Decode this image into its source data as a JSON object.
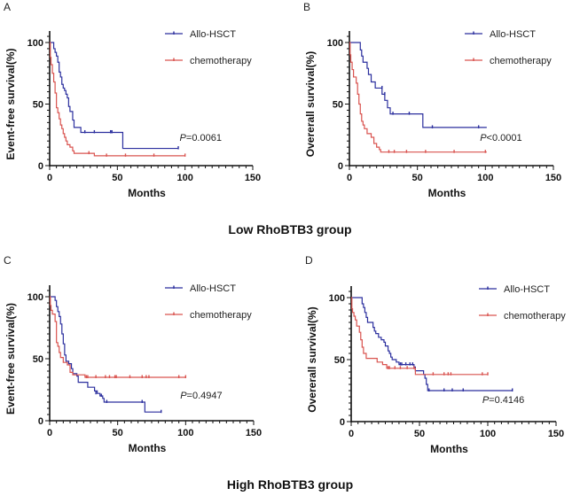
{
  "colors": {
    "allo": "#2b2f9e",
    "chemo": "#d9534f",
    "axis": "#111111"
  },
  "group_labels": {
    "low": "Low RhoBTB3 group",
    "high": "High RhoBTB3 group"
  },
  "chart_data": [
    {
      "id": "A",
      "type": "line",
      "panel_label": "A",
      "title": "",
      "xlabel": "Months",
      "ylabel": "Event-free survival(%)",
      "xlim": [
        0,
        150
      ],
      "ylim": [
        0,
        100
      ],
      "xticks": [
        "0",
        "50",
        "100",
        "150"
      ],
      "yticks": [
        "0",
        "50",
        "100"
      ],
      "legend": [
        "Allo-HSCT",
        "chemotherapy"
      ],
      "legend_position": "top-right",
      "annotation": {
        "italic": "P",
        "text": "=0.0061"
      },
      "series": [
        {
          "name": "Allo-HSCT",
          "color_key": "allo",
          "steps": [
            [
              0,
              100
            ],
            [
              2,
              100
            ],
            [
              3,
              95
            ],
            [
              4,
              92
            ],
            [
              5,
              89
            ],
            [
              6,
              84
            ],
            [
              7,
              76
            ],
            [
              8,
              72
            ],
            [
              9,
              66
            ],
            [
              10,
              63
            ],
            [
              11,
              61
            ],
            [
              12,
              58
            ],
            [
              13,
              55
            ],
            [
              14,
              48
            ],
            [
              15,
              44
            ],
            [
              17,
              37
            ],
            [
              18,
              31
            ],
            [
              22,
              31
            ],
            [
              23,
              27
            ],
            [
              54,
              27
            ],
            [
              54,
              14
            ],
            [
              95,
              14
            ]
          ],
          "censored": [
            [
              26,
              27
            ],
            [
              33,
              27
            ],
            [
              45,
              27
            ],
            [
              46,
              27
            ],
            [
              95,
              14
            ]
          ]
        },
        {
          "name": "chemotherapy",
          "color_key": "chemo",
          "steps": [
            [
              0,
              100
            ],
            [
              0.5,
              88
            ],
            [
              1,
              82
            ],
            [
              2,
              75
            ],
            [
              3,
              68
            ],
            [
              4,
              59
            ],
            [
              5,
              47
            ],
            [
              6,
              43
            ],
            [
              7,
              38
            ],
            [
              8,
              33
            ],
            [
              9,
              30
            ],
            [
              10,
              26
            ],
            [
              11,
              23
            ],
            [
              12,
              20
            ],
            [
              13,
              17
            ],
            [
              15,
              15
            ],
            [
              17,
              12
            ],
            [
              18,
              10
            ],
            [
              30,
              10
            ],
            [
              33,
              8
            ],
            [
              100,
              8
            ]
          ],
          "censored": [
            [
              29,
              10
            ],
            [
              42,
              8
            ],
            [
              56,
              8
            ],
            [
              77,
              8
            ],
            [
              100,
              8
            ]
          ]
        }
      ]
    },
    {
      "id": "B",
      "type": "line",
      "panel_label": "B",
      "title": "",
      "xlabel": "Months",
      "ylabel": "Overerall survival(%)",
      "xlim": [
        0,
        150
      ],
      "ylim": [
        0,
        100
      ],
      "xticks": [
        "0",
        "50",
        "100",
        "150"
      ],
      "yticks": [
        "0",
        "50",
        "100"
      ],
      "legend": [
        "Allo-HSCT",
        "chemotherapy"
      ],
      "legend_position": "top-right",
      "annotation": {
        "italic": "P",
        "text": "<0.0001"
      },
      "series": [
        {
          "name": "Allo-HSCT",
          "color_key": "allo",
          "steps": [
            [
              0,
              100
            ],
            [
              7,
              100
            ],
            [
              8,
              94
            ],
            [
              9,
              89
            ],
            [
              10,
              84
            ],
            [
              13,
              79
            ],
            [
              14,
              74
            ],
            [
              16,
              68
            ],
            [
              19,
              63
            ],
            [
              23,
              63
            ],
            [
              24,
              58
            ],
            [
              26,
              53
            ],
            [
              28,
              47
            ],
            [
              30,
              42
            ],
            [
              53,
              42
            ],
            [
              54,
              31
            ],
            [
              101,
              31
            ]
          ],
          "censored": [
            [
              24,
              63
            ],
            [
              26,
              58
            ],
            [
              32,
              42
            ],
            [
              44,
              42
            ],
            [
              61,
              31
            ],
            [
              95,
              31
            ]
          ]
        },
        {
          "name": "chemotherapy",
          "color_key": "chemo",
          "steps": [
            [
              0,
              100
            ],
            [
              0.5,
              90
            ],
            [
              1,
              84
            ],
            [
              2,
              78
            ],
            [
              3,
              72
            ],
            [
              5,
              67
            ],
            [
              6,
              58
            ],
            [
              7,
              50
            ],
            [
              8,
              42
            ],
            [
              9,
              36
            ],
            [
              10,
              33
            ],
            [
              11,
              30
            ],
            [
              13,
              26
            ],
            [
              16,
              23
            ],
            [
              18,
              18
            ],
            [
              20,
              15
            ],
            [
              22,
              13
            ],
            [
              23,
              11
            ],
            [
              101,
              11
            ]
          ],
          "censored": [
            [
              29,
              11
            ],
            [
              33,
              11
            ],
            [
              42,
              11
            ],
            [
              56,
              11
            ],
            [
              77,
              11
            ],
            [
              100,
              11
            ]
          ]
        }
      ]
    },
    {
      "id": "C",
      "type": "line",
      "panel_label": "C",
      "title": "",
      "xlabel": "Months",
      "ylabel": "Event-free survival(%)",
      "xlim": [
        0,
        150
      ],
      "ylim": [
        0,
        100
      ],
      "xticks": [
        "0",
        "50",
        "100",
        "150"
      ],
      "yticks": [
        "0",
        "50",
        "100"
      ],
      "legend": [
        "Allo-HSCT",
        "chemotherapy"
      ],
      "legend_position": "top-right",
      "annotation": {
        "italic": "P",
        "text": "=0.4947"
      },
      "series": [
        {
          "name": "Allo-HSCT",
          "color_key": "allo",
          "steps": [
            [
              0,
              100
            ],
            [
              3,
              100
            ],
            [
              4,
              97
            ],
            [
              5,
              92
            ],
            [
              6,
              88
            ],
            [
              7,
              84
            ],
            [
              8,
              78
            ],
            [
              9,
              70
            ],
            [
              10,
              62
            ],
            [
              11,
              53
            ],
            [
              12,
              48
            ],
            [
              14,
              46
            ],
            [
              16,
              42
            ],
            [
              17,
              38
            ],
            [
              20,
              36
            ],
            [
              21,
              31
            ],
            [
              27,
              31
            ],
            [
              28,
              27
            ],
            [
              32,
              27
            ],
            [
              33,
              24
            ],
            [
              35,
              22
            ],
            [
              37,
              20
            ],
            [
              39,
              18
            ],
            [
              40,
              15
            ],
            [
              68,
              15
            ],
            [
              70,
              7
            ],
            [
              82,
              7
            ]
          ],
          "censored": [
            [
              34,
              22
            ],
            [
              38,
              20
            ],
            [
              42,
              15
            ],
            [
              68,
              15
            ],
            [
              82,
              7
            ]
          ]
        },
        {
          "name": "chemotherapy",
          "color_key": "chemo",
          "steps": [
            [
              0,
              100
            ],
            [
              0.5,
              93
            ],
            [
              1,
              89
            ],
            [
              2,
              86
            ],
            [
              4,
              80
            ],
            [
              5,
              63
            ],
            [
              6,
              60
            ],
            [
              7,
              55
            ],
            [
              8,
              51
            ],
            [
              9,
              51
            ],
            [
              10,
              47
            ],
            [
              13,
              45
            ],
            [
              15,
              39
            ],
            [
              17,
              37
            ],
            [
              20,
              37
            ],
            [
              26,
              35
            ],
            [
              100,
              35
            ]
          ],
          "censored": [
            [
              27,
              35
            ],
            [
              28,
              35
            ],
            [
              34,
              35
            ],
            [
              41,
              35
            ],
            [
              44,
              35
            ],
            [
              48,
              35
            ],
            [
              49,
              35
            ],
            [
              59,
              35
            ],
            [
              68,
              35
            ],
            [
              71,
              35
            ],
            [
              73,
              35
            ],
            [
              95,
              35
            ],
            [
              100,
              35
            ]
          ]
        }
      ]
    },
    {
      "id": "D",
      "type": "line",
      "panel_label": "D",
      "title": "",
      "xlabel": "Months",
      "ylabel": "Overerall survival(%)",
      "xlim": [
        0,
        150
      ],
      "ylim": [
        0,
        100
      ],
      "xticks": [
        "0",
        "50",
        "100",
        "150"
      ],
      "yticks": [
        "0",
        "50",
        "100"
      ],
      "legend": [
        "Allo-HSCT",
        "chemotherapy"
      ],
      "legend_position": "top-right",
      "annotation": {
        "italic": "P",
        "text": "=0.4146"
      },
      "series": [
        {
          "name": "Allo-HSCT",
          "color_key": "allo",
          "steps": [
            [
              0,
              100
            ],
            [
              7,
              100
            ],
            [
              8,
              95
            ],
            [
              9,
              92
            ],
            [
              10,
              88
            ],
            [
              11,
              84
            ],
            [
              12,
              80
            ],
            [
              16,
              76
            ],
            [
              17,
              73
            ],
            [
              18,
              71
            ],
            [
              20,
              68
            ],
            [
              22,
              66
            ],
            [
              24,
              64
            ],
            [
              25,
              61
            ],
            [
              27,
              57
            ],
            [
              28,
              55
            ],
            [
              29,
              52
            ],
            [
              30,
              50
            ],
            [
              33,
              48
            ],
            [
              35,
              46
            ],
            [
              46,
              44
            ],
            [
              47,
              41
            ],
            [
              53,
              38
            ],
            [
              54,
              35
            ],
            [
              55,
              30
            ],
            [
              56,
              25
            ],
            [
              118,
              25
            ]
          ],
          "censored": [
            [
              36,
              46
            ],
            [
              37,
              46
            ],
            [
              40,
              46
            ],
            [
              43,
              46
            ],
            [
              45,
              46
            ],
            [
              57,
              25
            ],
            [
              68,
              25
            ],
            [
              74,
              25
            ],
            [
              82,
              25
            ],
            [
              118,
              25
            ]
          ]
        },
        {
          "name": "chemotherapy",
          "color_key": "chemo",
          "steps": [
            [
              0,
              100
            ],
            [
              0.5,
              91
            ],
            [
              1,
              88
            ],
            [
              2,
              85
            ],
            [
              3,
              82
            ],
            [
              4,
              77
            ],
            [
              6,
              72
            ],
            [
              7,
              66
            ],
            [
              8,
              60
            ],
            [
              9,
              55
            ],
            [
              11,
              51
            ],
            [
              19,
              48
            ],
            [
              23,
              46
            ],
            [
              26,
              43
            ],
            [
              45,
              43
            ],
            [
              47,
              38
            ],
            [
              100,
              38
            ]
          ],
          "censored": [
            [
              27,
              43
            ],
            [
              28,
              43
            ],
            [
              32,
              43
            ],
            [
              36,
              43
            ],
            [
              41,
              43
            ],
            [
              46,
              43
            ],
            [
              60,
              38
            ],
            [
              68,
              38
            ],
            [
              71,
              38
            ],
            [
              73,
              38
            ],
            [
              96,
              38
            ],
            [
              100,
              38
            ]
          ]
        }
      ]
    }
  ]
}
